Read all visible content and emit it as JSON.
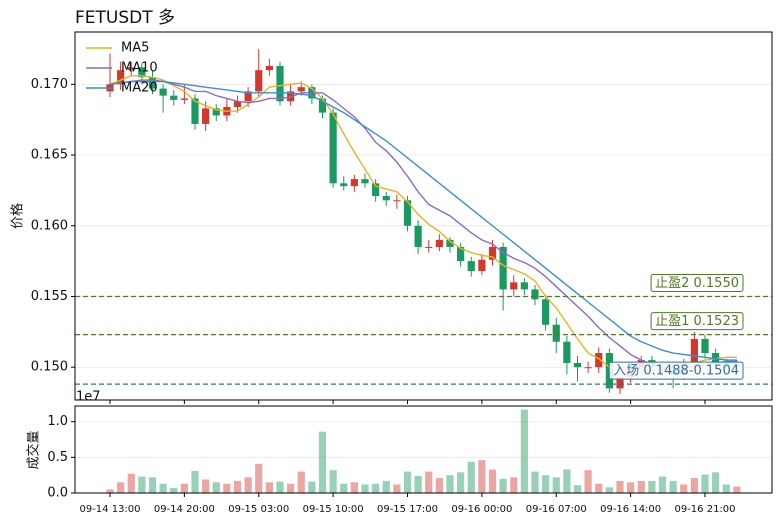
{
  "chart_data": {
    "type": "candlestick",
    "title": "FETUSDT 多",
    "ylabel": "价格",
    "categories": [
      "09-14 13:00",
      null,
      null,
      null,
      null,
      null,
      null,
      "09-14 20:00",
      null,
      null,
      null,
      null,
      null,
      null,
      "09-15 03:00",
      null,
      null,
      null,
      null,
      null,
      null,
      "09-15 10:00",
      null,
      null,
      null,
      null,
      null,
      null,
      "09-15 17:00",
      null,
      null,
      null,
      null,
      null,
      null,
      "09-16 00:00",
      null,
      null,
      null,
      null,
      null,
      null,
      "09-16 07:00",
      null,
      null,
      null,
      null,
      null,
      null,
      "09-16 14:00",
      null,
      null,
      null,
      null,
      null,
      null,
      "09-16 21:00",
      null,
      null,
      null
    ],
    "open": [
      0.1695,
      0.17,
      0.171,
      0.1712,
      0.1705,
      0.1697,
      0.1692,
      0.1689,
      0.169,
      0.1672,
      0.1683,
      0.1678,
      0.1684,
      0.1688,
      0.1695,
      0.171,
      0.1713,
      0.1688,
      0.1695,
      0.1698,
      0.169,
      0.168,
      0.163,
      0.1628,
      0.1633,
      0.163,
      0.1621,
      0.1618,
      0.1618,
      0.16,
      0.1585,
      0.1585,
      0.159,
      0.1585,
      0.1575,
      0.1568,
      0.1576,
      0.1585,
      0.1555,
      0.156,
      0.1555,
      0.1548,
      0.153,
      0.1518,
      0.1503,
      0.15,
      0.15,
      0.151,
      0.1485,
      0.1493,
      0.15,
      0.1505,
      0.15,
      0.1498,
      0.1495,
      0.1503,
      0.152,
      0.151,
      0.1503,
      0.15
    ],
    "high": [
      0.1722,
      0.1716,
      0.1716,
      0.1715,
      0.171,
      0.17,
      0.1696,
      0.17,
      0.1693,
      0.1688,
      0.1686,
      0.169,
      0.1692,
      0.1698,
      0.1725,
      0.1718,
      0.1716,
      0.17,
      0.1702,
      0.17,
      0.1692,
      0.1683,
      0.1635,
      0.1636,
      0.1637,
      0.1633,
      0.1624,
      0.1622,
      0.1621,
      0.1604,
      0.159,
      0.1594,
      0.1592,
      0.1588,
      0.1578,
      0.158,
      0.159,
      0.1588,
      0.1565,
      0.1563,
      0.1558,
      0.1551,
      0.1535,
      0.1522,
      0.1508,
      0.1504,
      0.1514,
      0.1513,
      0.1497,
      0.1504,
      0.1508,
      0.1508,
      0.1503,
      0.1502,
      0.1506,
      0.1525,
      0.1523,
      0.1513,
      0.1506,
      0.1505
    ],
    "low": [
      0.1691,
      0.1696,
      0.1706,
      0.17,
      0.1693,
      0.168,
      0.1685,
      0.1686,
      0.1668,
      0.1667,
      0.1674,
      0.1674,
      0.168,
      0.1684,
      0.1691,
      0.1706,
      0.1685,
      0.1685,
      0.1692,
      0.1686,
      0.1676,
      0.1627,
      0.1625,
      0.1624,
      0.1627,
      0.1617,
      0.1614,
      0.1612,
      0.1596,
      0.158,
      0.1581,
      0.1582,
      0.1581,
      0.1571,
      0.1564,
      0.1565,
      0.1572,
      0.154,
      0.155,
      0.1551,
      0.1544,
      0.1526,
      0.151,
      0.1495,
      0.149,
      0.1496,
      0.1496,
      0.1482,
      0.1481,
      0.1489,
      0.1496,
      0.1496,
      0.1494,
      0.1485,
      0.1491,
      0.1499,
      0.1506,
      0.1499,
      0.1496,
      0.1497
    ],
    "close": [
      0.17,
      0.171,
      0.1712,
      0.1705,
      0.1697,
      0.1692,
      0.1689,
      0.169,
      0.1672,
      0.1683,
      0.1678,
      0.1684,
      0.1688,
      0.1695,
      0.171,
      0.1713,
      0.1688,
      0.1695,
      0.1698,
      0.169,
      0.168,
      0.163,
      0.1628,
      0.1633,
      0.163,
      0.1621,
      0.1618,
      0.1618,
      0.16,
      0.1585,
      0.1585,
      0.159,
      0.1585,
      0.1575,
      0.1568,
      0.1576,
      0.1585,
      0.1555,
      0.156,
      0.1555,
      0.1548,
      0.153,
      0.1518,
      0.1503,
      0.15,
      0.15,
      0.151,
      0.1485,
      0.1493,
      0.15,
      0.1505,
      0.15,
      0.1498,
      0.1495,
      0.1503,
      0.152,
      0.151,
      0.1503,
      0.15,
      0.1502
    ],
    "up_color": "#d03a2e",
    "down_color": "#1a9a60",
    "series": [
      {
        "name": "MA5",
        "color": "#e6b422",
        "values": [
          0.17,
          0.1703,
          0.1706,
          0.1706,
          0.1705,
          0.1703,
          0.1699,
          0.1695,
          0.1688,
          0.1685,
          0.1682,
          0.1681,
          0.1681,
          0.1686,
          0.1691,
          0.1698,
          0.1699,
          0.17,
          0.1701,
          0.1697,
          0.169,
          0.1679,
          0.1665,
          0.1652,
          0.164,
          0.1628,
          0.1626,
          0.1624,
          0.1617,
          0.1608,
          0.1601,
          0.1596,
          0.1589,
          0.1584,
          0.1581,
          0.1579,
          0.1578,
          0.1572,
          0.1569,
          0.1566,
          0.1561,
          0.155,
          0.1542,
          0.1531,
          0.152,
          0.151,
          0.1506,
          0.15,
          0.1498,
          0.1498,
          0.1499,
          0.1497,
          0.1499,
          0.15,
          0.15,
          0.1503,
          0.1505,
          0.1506,
          0.1507,
          0.1507
        ]
      },
      {
        "name": "MA10",
        "color": "#8a6acb",
        "values": [
          0.17,
          0.1701,
          0.1702,
          0.1703,
          0.1703,
          0.1702,
          0.17,
          0.1698,
          0.1695,
          0.1695,
          0.1692,
          0.169,
          0.1688,
          0.1687,
          0.1688,
          0.169,
          0.169,
          0.1691,
          0.1694,
          0.1694,
          0.1694,
          0.1689,
          0.1683,
          0.1677,
          0.1669,
          0.1659,
          0.1653,
          0.1645,
          0.1635,
          0.1624,
          0.1615,
          0.1611,
          0.1607,
          0.1601,
          0.1595,
          0.159,
          0.1587,
          0.1581,
          0.1577,
          0.1574,
          0.157,
          0.1564,
          0.1557,
          0.155,
          0.1543,
          0.1536,
          0.1528,
          0.1521,
          0.1515,
          0.1509,
          0.1505,
          0.1502,
          0.15,
          0.1499,
          0.1499,
          0.1501,
          0.1501,
          0.1503,
          0.1504,
          0.1504
        ]
      },
      {
        "name": "MA20",
        "color": "#3b8fd0",
        "values": [
          0.17,
          0.1701,
          0.1702,
          0.1702,
          0.1702,
          0.1702,
          0.1701,
          0.17,
          0.1699,
          0.1698,
          0.1697,
          0.1696,
          0.1695,
          0.1694,
          0.1694,
          0.1694,
          0.1694,
          0.1694,
          0.1693,
          0.1692,
          0.1688,
          0.1684,
          0.168,
          0.1675,
          0.167,
          0.1665,
          0.166,
          0.1654,
          0.1648,
          0.1642,
          0.1636,
          0.163,
          0.1624,
          0.1618,
          0.1612,
          0.1606,
          0.16,
          0.1594,
          0.1588,
          0.1582,
          0.1576,
          0.157,
          0.1564,
          0.1558,
          0.1552,
          0.1546,
          0.154,
          0.1534,
          0.1528,
          0.1522,
          0.1518,
          0.1515,
          0.1512,
          0.151,
          0.1509,
          0.1508,
          0.1507,
          0.1506,
          0.1505,
          0.1505
        ]
      }
    ],
    "ylim": [
      0.14768,
      0.1737
    ],
    "yticks": [
      {
        "value": 0.15,
        "label": "0.150"
      },
      0.155,
      {
        "value": 0.16,
        "label": "0.160"
      },
      0.165,
      {
        "value": 0.17,
        "label": "0.170"
      }
    ],
    "grid": true,
    "legend": "upper left",
    "hlines": [
      {
        "label": "止盈2 0.1550",
        "value": 0.155,
        "color": "#4f7a28"
      },
      {
        "label": "止盈1 0.1523",
        "value": 0.1523,
        "color": "#4f7a28"
      },
      {
        "label": "入场 0.1488-0.1504",
        "value": 0.1488,
        "color": "#2f6ea8"
      }
    ],
    "volume": {
      "ylabel": "成交量",
      "offset_label": "1e7",
      "values": [
        0.05,
        0.15,
        0.27,
        0.23,
        0.22,
        0.13,
        0.07,
        0.13,
        0.31,
        0.19,
        0.15,
        0.13,
        0.17,
        0.22,
        0.41,
        0.15,
        0.16,
        0.13,
        0.3,
        0.16,
        0.86,
        0.32,
        0.13,
        0.15,
        0.12,
        0.13,
        0.17,
        0.12,
        0.3,
        0.24,
        0.3,
        0.21,
        0.25,
        0.29,
        0.44,
        0.46,
        0.33,
        0.2,
        0.22,
        1.17,
        0.3,
        0.25,
        0.22,
        0.33,
        0.11,
        0.32,
        0.13,
        0.08,
        0.17,
        0.15,
        0.17,
        0.17,
        0.23,
        0.17,
        0.12,
        0.21,
        0.26,
        0.29,
        0.12,
        0.09
      ],
      "ylim": [
        0,
        1.22
      ],
      "yticks": [
        {
          "value": 0,
          "label": "0.0"
        },
        0.5,
        {
          "value": 1,
          "label": "1.0"
        }
      ]
    }
  }
}
